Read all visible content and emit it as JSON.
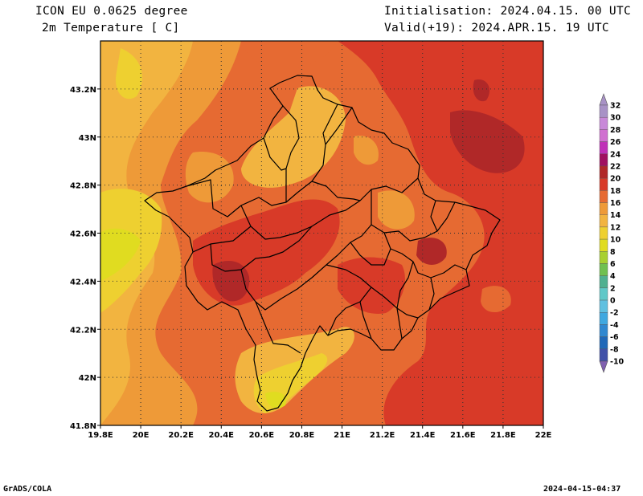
{
  "header": {
    "model": "ICON EU 0.0625 degree",
    "variable": "2m Temperature [ C]",
    "init": "Initialisation: 2024.04.15. 00 UTC",
    "valid": "Valid(+19): 2024.APR.15. 19 UTC"
  },
  "footer": {
    "credit": "GrADS/COLA",
    "timestamp": "2024-04-15-04:37"
  },
  "axes": {
    "lon_labels": [
      "19.8E",
      "20E",
      "20.2E",
      "20.4E",
      "20.6E",
      "20.8E",
      "21E",
      "21.2E",
      "21.4E",
      "21.6E",
      "21.8E",
      "22E"
    ],
    "lat_labels": [
      "43.2N",
      "43N",
      "42.8N",
      "42.6N",
      "42.4N",
      "42.2N",
      "42N",
      "41.8N"
    ],
    "lon_range": [
      19.8,
      22.0
    ],
    "lat_range": [
      41.8,
      43.4
    ],
    "grid": "dotted"
  },
  "colorbar": {
    "levels": [
      "32",
      "30",
      "28",
      "26",
      "24",
      "22",
      "20",
      "18",
      "16",
      "14",
      "12",
      "10",
      "8",
      "6",
      "4",
      "2",
      "0",
      "-2",
      "-4",
      "-6",
      "-8",
      "-10"
    ],
    "colors": [
      "#a892c6",
      "#c888d8",
      "#d070d0",
      "#c030b8",
      "#a01060",
      "#b02828",
      "#d83a28",
      "#e66a32",
      "#ee9a38",
      "#f2b440",
      "#eed030",
      "#e0dc20",
      "#a8d030",
      "#70c050",
      "#50b090",
      "#60c8c8",
      "#60c0e0",
      "#40a8e0",
      "#3088d0",
      "#2068b8",
      "#4050a8",
      "#8060b0"
    ]
  },
  "map": {
    "region_colors": {
      "c14": "#f2b440",
      "c16": "#ee9a38",
      "c18": "#e66a32",
      "c20": "#d83a28",
      "c22": "#b02828",
      "c10": "#e0dc20",
      "c12": "#eed030"
    }
  }
}
